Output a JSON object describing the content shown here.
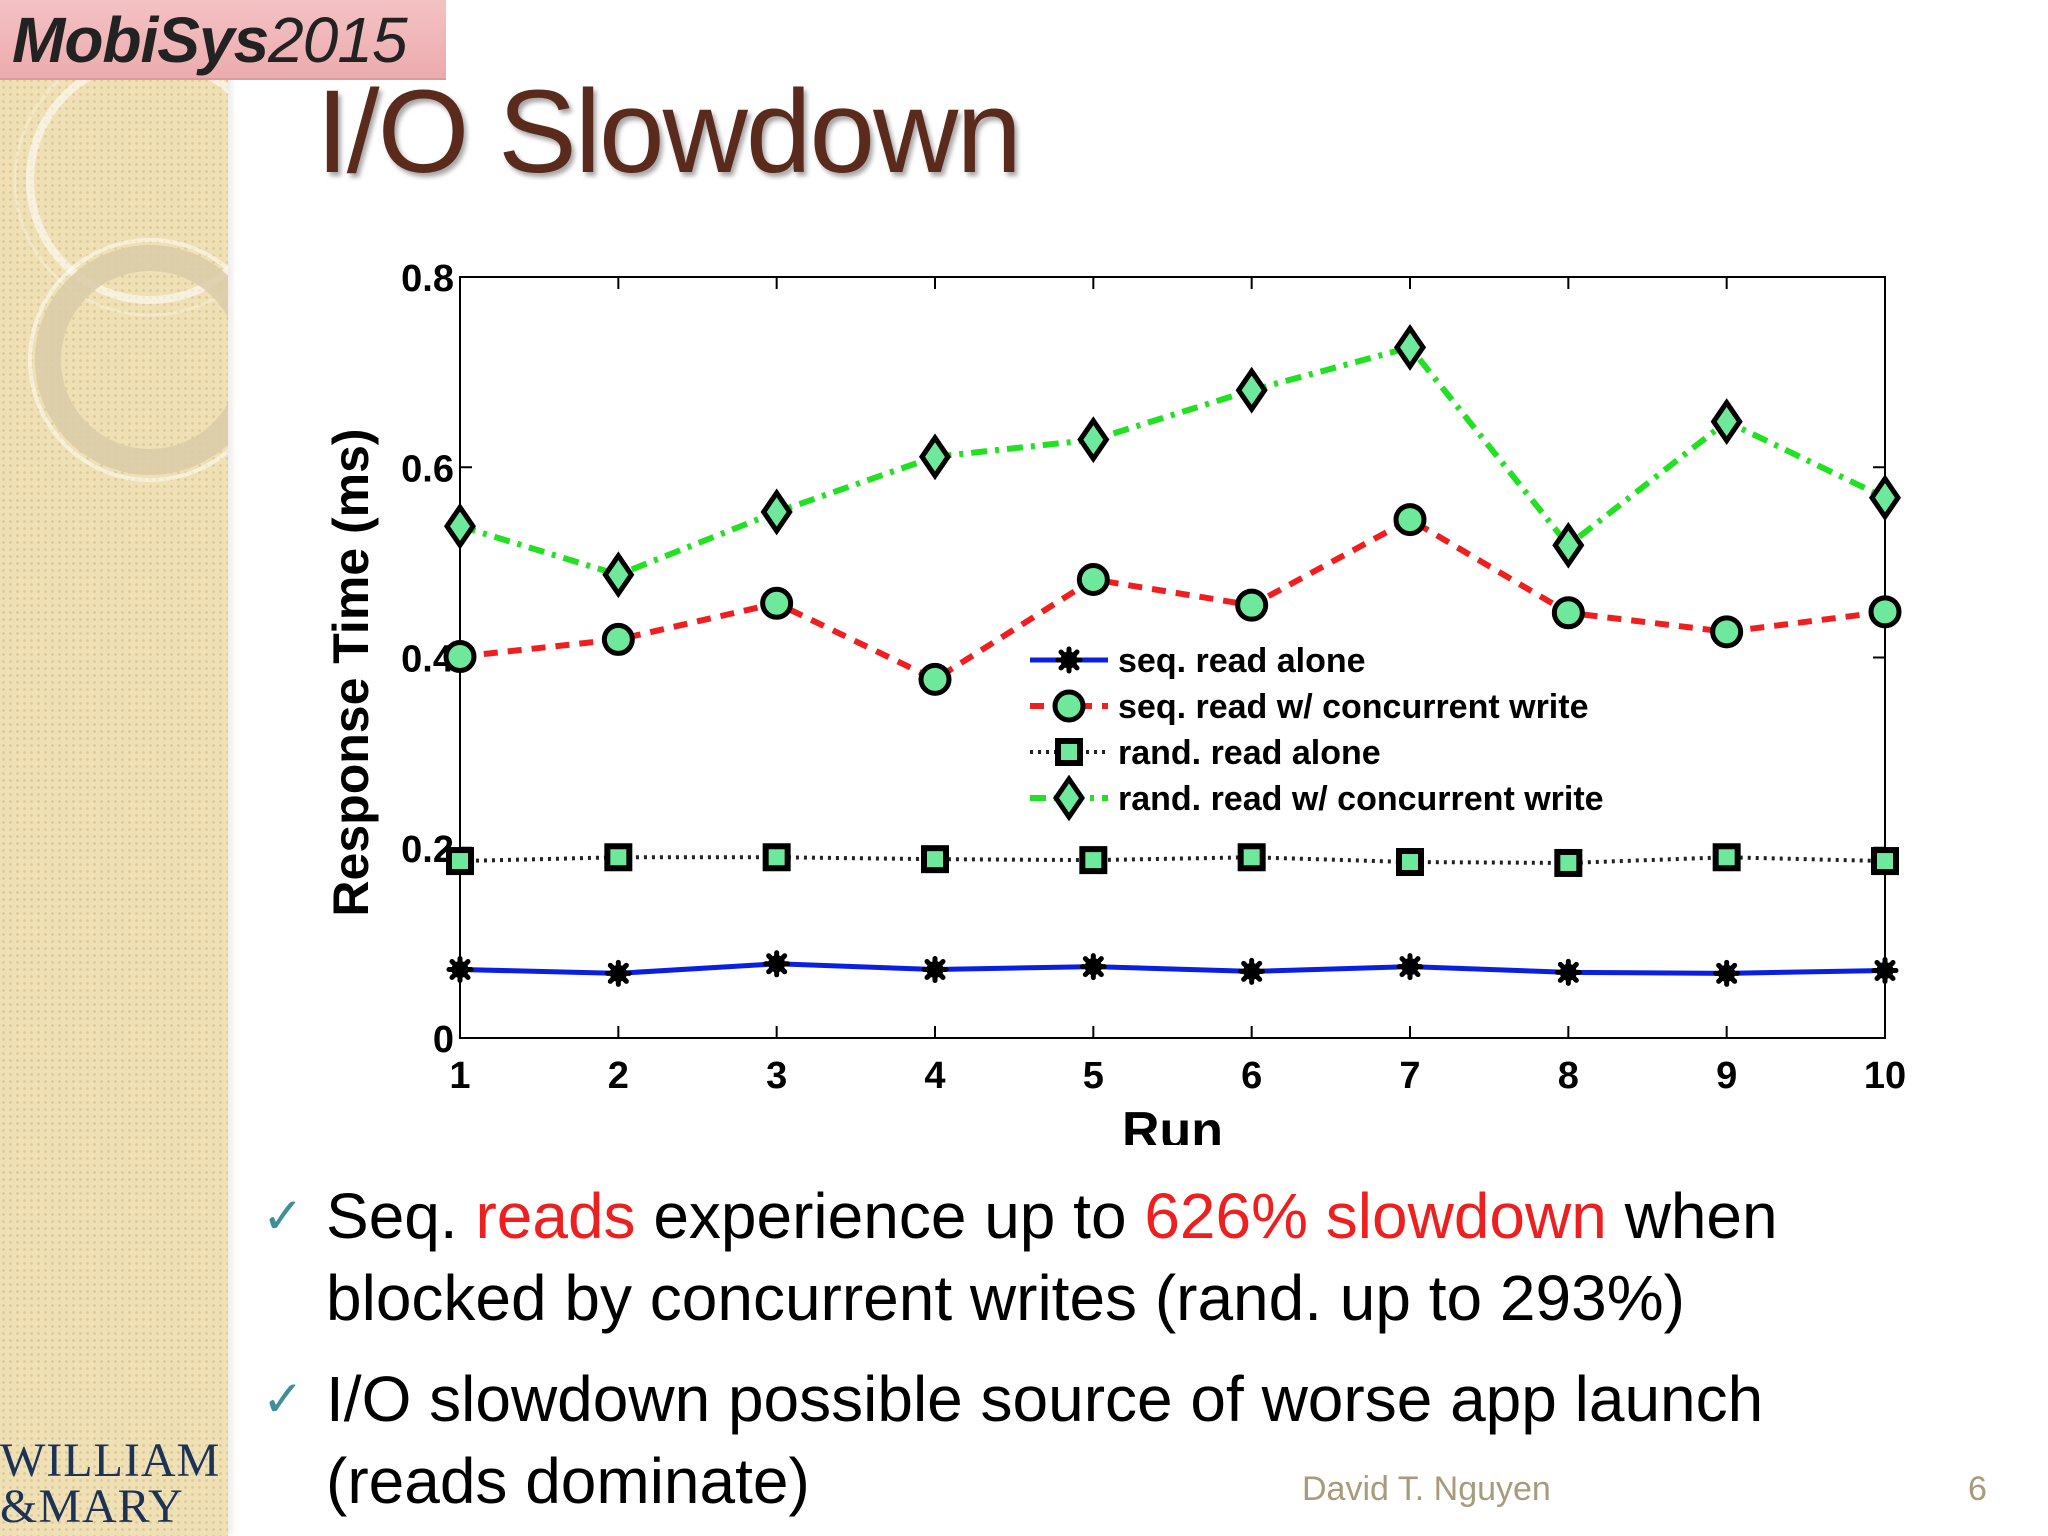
{
  "conference_logo": {
    "bold": "MobiSys",
    "year": "2015"
  },
  "slide": {
    "title": "I/O Slowdown",
    "author": "David T. Nguyen",
    "page": "6"
  },
  "university_logo": {
    "line1": "WILLIAM",
    "line2": "&MARY"
  },
  "bullets": [
    {
      "check": "✓",
      "parts": [
        {
          "text": "Seq. ",
          "red": false
        },
        {
          "text": "reads",
          "red": true
        },
        {
          "text": " experience up to ",
          "red": false
        },
        {
          "text": "626% slowdown",
          "red": true
        },
        {
          "text": " when blocked by concurrent writes (rand. up to 293%)",
          "red": false
        }
      ]
    },
    {
      "check": "✓",
      "parts": [
        {
          "text": "I/O slowdown possible source of worse app launch (reads dominate)",
          "red": false
        }
      ]
    }
  ],
  "chart_data": {
    "type": "line",
    "xlabel": "Run",
    "ylabel": "Response Time (ms)",
    "x": [
      1,
      2,
      3,
      4,
      5,
      6,
      7,
      8,
      9,
      10
    ],
    "xlim": [
      1,
      10
    ],
    "ylim": [
      0,
      0.8
    ],
    "yticks": [
      "0",
      "0.2",
      "0.4",
      "0.6",
      "0.8"
    ],
    "xticks": [
      "1",
      "2",
      "3",
      "4",
      "5",
      "6",
      "7",
      "8",
      "9",
      "10"
    ],
    "grid": false,
    "legend_position": "center-right",
    "series": [
      {
        "name": "seq. read alone",
        "color": "#0a1fe0",
        "marker": "star",
        "dash": "solid",
        "values": [
          0.072,
          0.068,
          0.078,
          0.072,
          0.075,
          0.07,
          0.075,
          0.069,
          0.068,
          0.071
        ]
      },
      {
        "name": "seq. read w/ concurrent write",
        "color": "#f01e1e",
        "marker": "circle",
        "dash": "dashed",
        "values": [
          0.401,
          0.419,
          0.457,
          0.377,
          0.482,
          0.455,
          0.545,
          0.447,
          0.427,
          0.448
        ]
      },
      {
        "name": "rand. read alone",
        "color": "#222222",
        "marker": "square",
        "dash": "dotted",
        "values": [
          0.186,
          0.19,
          0.19,
          0.188,
          0.187,
          0.19,
          0.185,
          0.184,
          0.19,
          0.186
        ]
      },
      {
        "name": "rand. read w/ concurrent write",
        "color": "#22e022",
        "marker": "diamond",
        "dash": "dashdot",
        "values": [
          0.538,
          0.487,
          0.553,
          0.611,
          0.629,
          0.681,
          0.726,
          0.518,
          0.648,
          0.568
        ]
      }
    ],
    "marker_fill": "#6ee89a"
  }
}
